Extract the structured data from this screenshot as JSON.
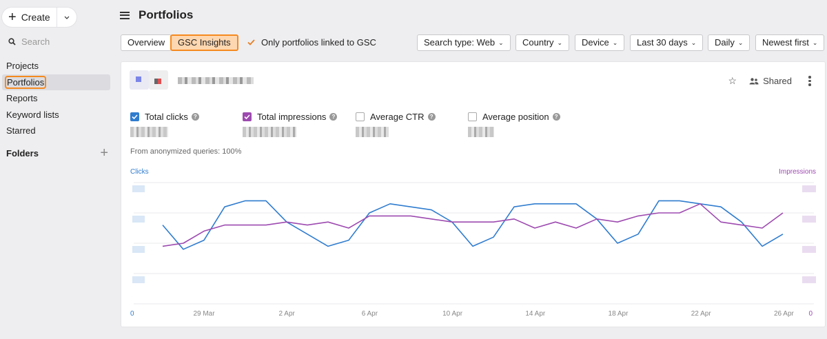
{
  "sidebar": {
    "create_label": "Create",
    "search_placeholder": "Search",
    "items": [
      {
        "label": "Projects"
      },
      {
        "label": "Portfolios"
      },
      {
        "label": "Reports"
      },
      {
        "label": "Keyword lists"
      },
      {
        "label": "Starred"
      }
    ],
    "active_item": "Portfolios",
    "folders_label": "Folders"
  },
  "header": {
    "title": "Portfolios"
  },
  "toolbar": {
    "tabs": [
      {
        "label": "Overview"
      },
      {
        "label": "GSC Insights"
      }
    ],
    "active_tab": "GSC Insights",
    "only_linked_label": "Only portfolios linked to GSC",
    "only_linked_checked": true,
    "dropdowns": [
      {
        "label": "Search type: Web"
      },
      {
        "label": "Country"
      },
      {
        "label": "Device"
      },
      {
        "label": "Last 30 days"
      },
      {
        "label": "Daily"
      },
      {
        "label": "Newest first"
      }
    ]
  },
  "card": {
    "shared_label": "Shared",
    "metrics": [
      {
        "label": "Total clicks",
        "checked": true,
        "color": "#2f7ccf"
      },
      {
        "label": "Total impressions",
        "checked": true,
        "color": "#9d4ab0"
      },
      {
        "label": "Average CTR",
        "checked": false
      },
      {
        "label": "Average position",
        "checked": false
      }
    ],
    "anonymized_note": "From anonymized queries: 100%",
    "left_axis_title": "Clicks",
    "right_axis_title": "Impressions"
  },
  "chart_data": {
    "type": "line",
    "x_ticks": [
      "29 Mar",
      "2 Apr",
      "6 Apr",
      "10 Apr",
      "14 Apr",
      "18 Apr",
      "22 Apr",
      "26 Apr"
    ],
    "left_axis_zero": "0",
    "right_axis_zero": "0",
    "series": [
      {
        "name": "Clicks",
        "axis": "left",
        "color": "#2f7ccf",
        "values": [
          2.6,
          1.8,
          2.1,
          3.2,
          3.4,
          3.4,
          2.7,
          2.3,
          1.9,
          2.1,
          3.0,
          3.3,
          3.2,
          3.1,
          2.7,
          1.9,
          2.2,
          3.2,
          3.3,
          3.3,
          3.3,
          2.8,
          2.0,
          2.3,
          3.4,
          3.4,
          3.3,
          3.2,
          2.7,
          1.9,
          2.3
        ]
      },
      {
        "name": "Impressions",
        "axis": "right",
        "color": "#9d4ab0",
        "values": [
          1.9,
          2.0,
          2.4,
          2.6,
          2.6,
          2.6,
          2.7,
          2.6,
          2.7,
          2.5,
          2.9,
          2.9,
          2.9,
          2.8,
          2.7,
          2.7,
          2.7,
          2.8,
          2.5,
          2.7,
          2.5,
          2.8,
          2.7,
          2.9,
          3.0,
          3.0,
          3.3,
          2.7,
          2.6,
          2.5,
          3.0
        ]
      }
    ],
    "grid": true,
    "ylim": [
      0,
      4
    ]
  }
}
